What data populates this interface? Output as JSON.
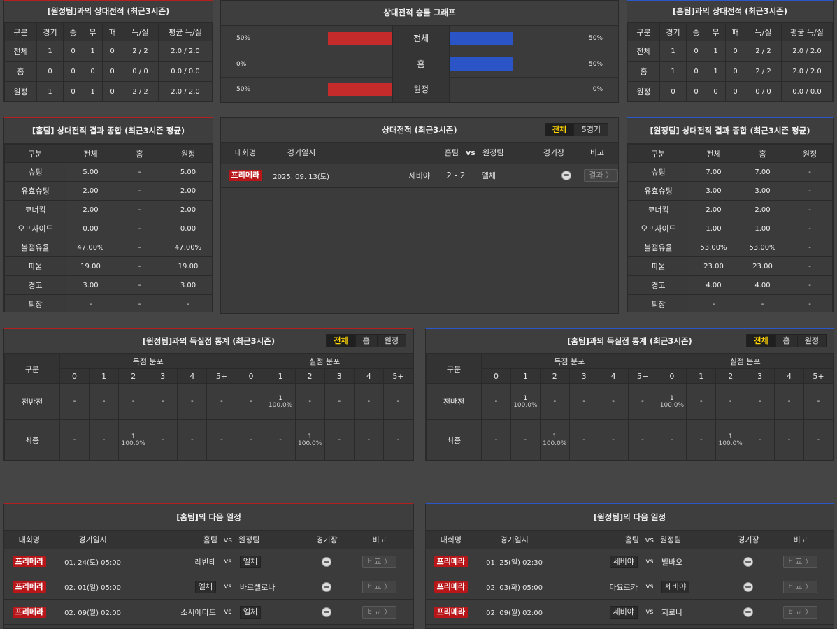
{
  "colors": {
    "red": "#c62b2b",
    "blue": "#2b55c7",
    "comp": "#b9161a",
    "active_tab": "#ffd400"
  },
  "h2h_away": {
    "title": "[원정팀]과의 상대전적 (최근3시즌)",
    "headers": [
      "구분",
      "경기",
      "승",
      "무",
      "패",
      "득/실",
      "평균 득/실"
    ],
    "rows": [
      [
        "전체",
        "1",
        "0",
        "1",
        "0",
        "2 / 2",
        "2.0 / 2.0"
      ],
      [
        "홈",
        "0",
        "0",
        "0",
        "0",
        "0 / 0",
        "0.0 / 0.0"
      ],
      [
        "원정",
        "1",
        "0",
        "1",
        "0",
        "2 / 2",
        "2.0 / 2.0"
      ]
    ]
  },
  "winrate": {
    "title": "상대전적 승률 그래프",
    "rows": [
      {
        "label": "전체",
        "left": "50%",
        "right": "50%",
        "left_val": 50,
        "right_val": 50
      },
      {
        "label": "홈",
        "left": "0%",
        "right": "50%",
        "left_val": 0,
        "right_val": 50
      },
      {
        "label": "원정",
        "left": "50%",
        "right": "0%",
        "left_val": 50,
        "right_val": 0
      }
    ]
  },
  "h2h_home": {
    "title": "[홈팀]과의 상대전적 (최근3시즌)",
    "headers": [
      "구분",
      "경기",
      "승",
      "무",
      "패",
      "득/실",
      "평균 득/실"
    ],
    "rows": [
      [
        "전체",
        "1",
        "0",
        "1",
        "0",
        "2 / 2",
        "2.0 / 2.0"
      ],
      [
        "홈",
        "1",
        "0",
        "1",
        "0",
        "2 / 2",
        "2.0 / 2.0"
      ],
      [
        "원정",
        "0",
        "0",
        "0",
        "0",
        "0 / 0",
        "0.0 / 0.0"
      ]
    ]
  },
  "summary_home": {
    "title": "[홈팀] 상대전적 결과 종합 (최근3시즌 평균)",
    "headers": [
      "구분",
      "전체",
      "홈",
      "원정"
    ],
    "rows": [
      [
        "슈팅",
        "5.00",
        "-",
        "5.00"
      ],
      [
        "유효슈팅",
        "2.00",
        "-",
        "2.00"
      ],
      [
        "코너킥",
        "2.00",
        "-",
        "2.00"
      ],
      [
        "오프사이드",
        "0.00",
        "-",
        "0.00"
      ],
      [
        "볼점유율",
        "47.00%",
        "-",
        "47.00%"
      ],
      [
        "파울",
        "19.00",
        "-",
        "19.00"
      ],
      [
        "경고",
        "3.00",
        "-",
        "3.00"
      ],
      [
        "퇴장",
        "-",
        "-",
        "-"
      ]
    ]
  },
  "h2h_matches": {
    "title": "상대전적 (최근3시즌)",
    "tabs": [
      "전체",
      "5경기"
    ],
    "headers": {
      "comp": "대회명",
      "date": "경기일시",
      "home": "홈팀",
      "vs": "vs",
      "away": "원정팀",
      "venue": "경기장",
      "note": "비고"
    },
    "matches": [
      {
        "comp": "프리메라",
        "date": "2025. 09. 13(토)",
        "home": "세비야",
        "score": "2 - 2",
        "away": "엘체",
        "btn": "결과 〉"
      }
    ]
  },
  "summary_away": {
    "title": "[원정팀] 상대전적 결과 종합 (최근3시즌 평균)",
    "headers": [
      "구분",
      "전체",
      "홈",
      "원정"
    ],
    "rows": [
      [
        "슈팅",
        "7.00",
        "7.00",
        "-"
      ],
      [
        "유효슈팅",
        "3.00",
        "3.00",
        "-"
      ],
      [
        "코너킥",
        "2.00",
        "2.00",
        "-"
      ],
      [
        "오프사이드",
        "1.00",
        "1.00",
        "-"
      ],
      [
        "볼점유율",
        "53.00%",
        "53.00%",
        "-"
      ],
      [
        "파울",
        "23.00",
        "23.00",
        "-"
      ],
      [
        "경고",
        "4.00",
        "4.00",
        "-"
      ],
      [
        "퇴장",
        "-",
        "-",
        "-"
      ]
    ]
  },
  "goals_left": {
    "title": "[원정팀]과의 득실점 통계 (최근3시즌)",
    "tabs": [
      "전체",
      "홈",
      "원정"
    ],
    "col_label": "구분",
    "scored_label": "득점 분포",
    "conceded_label": "실점 분포",
    "buckets": [
      "0",
      "1",
      "2",
      "3",
      "4",
      "5+"
    ],
    "rows": [
      {
        "label": "전반전",
        "cells": [
          [
            "-",
            ""
          ],
          [
            "-",
            ""
          ],
          [
            "-",
            ""
          ],
          [
            "-",
            ""
          ],
          [
            "-",
            ""
          ],
          [
            "-",
            ""
          ],
          [
            "-",
            ""
          ],
          [
            "1",
            "100.0%"
          ],
          [
            "-",
            ""
          ],
          [
            "-",
            ""
          ],
          [
            "-",
            ""
          ],
          [
            "-",
            ""
          ]
        ],
        "first": [
          "1",
          "100.0%"
        ]
      },
      {
        "label": "최종",
        "cells": [
          [
            "-",
            ""
          ],
          [
            "-",
            ""
          ],
          [
            "1",
            "100.0%"
          ],
          [
            "-",
            ""
          ],
          [
            "-",
            ""
          ],
          [
            "-",
            ""
          ],
          [
            "-",
            ""
          ],
          [
            "-",
            ""
          ],
          [
            "1",
            "100.0%"
          ],
          [
            "-",
            ""
          ],
          [
            "-",
            ""
          ],
          [
            "-",
            ""
          ]
        ]
      }
    ]
  },
  "goals_right": {
    "title": "[홈팀]과의 득실점 통계 (최근3시즌)",
    "tabs": [
      "전체",
      "홈",
      "원정"
    ],
    "col_label": "구분",
    "scored_label": "득점 분포",
    "conceded_label": "실점 분포",
    "buckets": [
      "0",
      "1",
      "2",
      "3",
      "4",
      "5+"
    ],
    "rows": [
      {
        "label": "전반전",
        "cells": [
          [
            "-",
            ""
          ],
          [
            "1",
            "100.0%"
          ],
          [
            "-",
            ""
          ],
          [
            "-",
            ""
          ],
          [
            "-",
            ""
          ],
          [
            "-",
            ""
          ],
          [
            "1",
            "100.0%"
          ],
          [
            "-",
            ""
          ],
          [
            "-",
            ""
          ],
          [
            "-",
            ""
          ],
          [
            "-",
            ""
          ],
          [
            "-",
            ""
          ]
        ]
      },
      {
        "label": "최종",
        "cells": [
          [
            "-",
            ""
          ],
          [
            "-",
            ""
          ],
          [
            "1",
            "100.0%"
          ],
          [
            "-",
            ""
          ],
          [
            "-",
            ""
          ],
          [
            "-",
            ""
          ],
          [
            "-",
            ""
          ],
          [
            "-",
            ""
          ],
          [
            "1",
            "100.0%"
          ],
          [
            "-",
            ""
          ],
          [
            "-",
            ""
          ],
          [
            "-",
            ""
          ]
        ]
      }
    ]
  },
  "next_home": {
    "title": "[홈팀]의 다음 일정",
    "headers": {
      "comp": "대회명",
      "date": "경기일시",
      "home": "홈팀",
      "vs": "vs",
      "away": "원정팀",
      "venue": "경기장",
      "note": "비고"
    },
    "matches": [
      {
        "comp": "프리메라",
        "date": "01. 24(토) 05:00",
        "home": "레반테",
        "away": "엘체",
        "hl": "away",
        "btn": "비교 〉"
      },
      {
        "comp": "프리메라",
        "date": "02. 01(일) 05:00",
        "home": "엘체",
        "away": "바르셀로나",
        "hl": "home",
        "btn": "비교 〉"
      },
      {
        "comp": "프리메라",
        "date": "02. 09(월) 02:00",
        "home": "소시에다드",
        "away": "엘체",
        "hl": "away",
        "btn": "비교 〉"
      }
    ]
  },
  "next_away": {
    "title": "[원정팀]의 다음 일정",
    "headers": {
      "comp": "대회명",
      "date": "경기일시",
      "home": "홈팀",
      "vs": "vs",
      "away": "원정팀",
      "venue": "경기장",
      "note": "비고"
    },
    "matches": [
      {
        "comp": "프리메라",
        "date": "01. 25(일) 02:30",
        "home": "세비야",
        "away": "빌바오",
        "hl": "home",
        "btn": "비교 〉"
      },
      {
        "comp": "프리메라",
        "date": "02. 03(화) 05:00",
        "home": "마요르카",
        "away": "세비야",
        "hl": "away",
        "btn": "비교 〉"
      },
      {
        "comp": "프리메라",
        "date": "02. 09(월) 02:00",
        "home": "세비야",
        "away": "지로나",
        "hl": "home",
        "btn": "비교 〉"
      }
    ]
  }
}
